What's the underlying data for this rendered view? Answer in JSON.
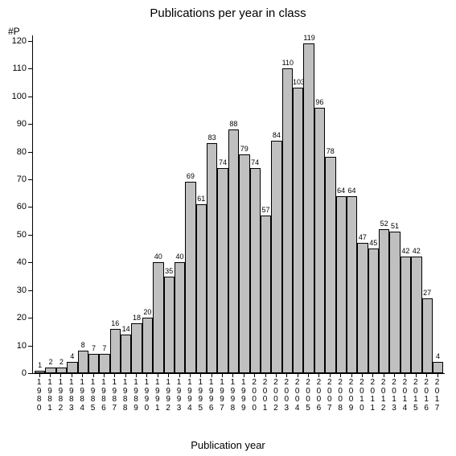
{
  "chart": {
    "type": "bar",
    "title": "Publications per year in class",
    "title_fontsize": 15,
    "ylabel": "#P",
    "ylabel_fontsize": 12,
    "xlabel": "Publication year",
    "xlabel_fontsize": 13,
    "background_color": "#ffffff",
    "bar_color": "#c0c0c0",
    "bar_border_color": "#000000",
    "axis_color": "#000000",
    "text_color": "#000000",
    "ylim": [
      0,
      122
    ],
    "yticks": [
      0,
      10,
      20,
      30,
      40,
      50,
      60,
      70,
      80,
      90,
      100,
      110,
      120
    ],
    "categories": [
      "1980",
      "1981",
      "1982",
      "1983",
      "1984",
      "1985",
      "1986",
      "1987",
      "1988",
      "1989",
      "1990",
      "1991",
      "1992",
      "1993",
      "1994",
      "1995",
      "1996",
      "1997",
      "1998",
      "1999",
      "2000",
      "2001",
      "2002",
      "2003",
      "2004",
      "2005",
      "2006",
      "2007",
      "2008",
      "2009",
      "2010",
      "2011",
      "2012",
      "2013",
      "2014",
      "2015",
      "2016",
      "2017"
    ],
    "values": [
      1,
      2,
      2,
      4,
      8,
      7,
      7,
      16,
      14,
      18,
      20,
      40,
      35,
      40,
      69,
      61,
      83,
      74,
      88,
      79,
      74,
      57,
      84,
      110,
      103,
      119,
      96,
      78,
      64,
      64,
      47,
      45,
      52,
      51,
      42,
      42,
      27,
      4
    ],
    "value_label_fontsize": 9,
    "ytick_fontsize": 11,
    "xtick_fontsize": 10,
    "bar_width": 1.0
  }
}
